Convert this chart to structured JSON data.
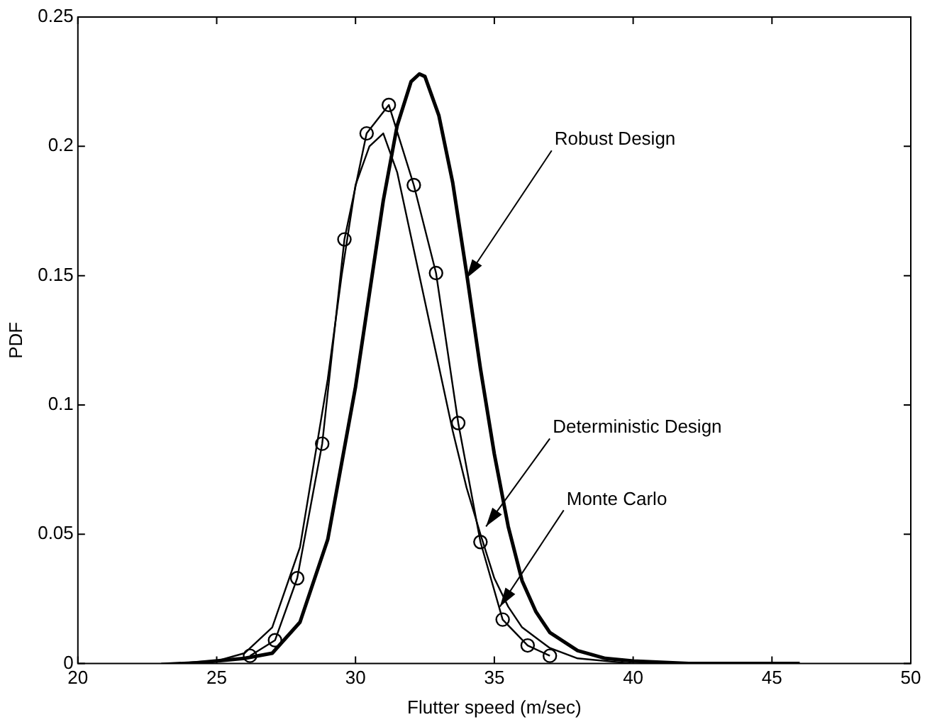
{
  "chart_data": {
    "type": "line",
    "xlabel": "Flutter speed (m/sec)",
    "ylabel": "PDF",
    "xlim": [
      20,
      50
    ],
    "xticks": [
      20,
      25,
      30,
      35,
      40,
      45,
      50
    ],
    "ylim": [
      0,
      0.25
    ],
    "yticks": [
      0,
      0.05,
      0.1,
      0.15,
      0.2,
      0.25
    ],
    "grid": false,
    "legend": false,
    "series": [
      {
        "color": "#000000",
        "marker": "none",
        "x": [
          24,
          26,
          27,
          28,
          29,
          30,
          30.5,
          31,
          31.5,
          32,
          32.3,
          32.5,
          33,
          33.5,
          34,
          34.5,
          35,
          35.5,
          36,
          36.5,
          37,
          38,
          39,
          40,
          42,
          46
        ],
        "values": [
          0,
          0.002,
          0.004,
          0.016,
          0.048,
          0.107,
          0.143,
          0.179,
          0.208,
          0.225,
          0.228,
          0.227,
          0.212,
          0.186,
          0.151,
          0.114,
          0.081,
          0.053,
          0.032,
          0.02,
          0.012,
          0.005,
          0.002,
          0.001,
          0,
          0
        ]
      },
      {
        "color": "#000000",
        "marker": "none",
        "x": [
          23,
          25,
          26,
          27,
          28,
          29,
          29.5,
          30,
          30.5,
          31,
          31.5,
          32,
          32.5,
          33,
          33.5,
          34,
          34.5,
          35,
          35.5,
          36,
          37,
          38,
          40,
          45
        ],
        "values": [
          0,
          0.001,
          0.004,
          0.014,
          0.045,
          0.11,
          0.15,
          0.185,
          0.2,
          0.205,
          0.19,
          0.165,
          0.14,
          0.115,
          0.09,
          0.068,
          0.05,
          0.033,
          0.022,
          0.014,
          0.006,
          0.002,
          0,
          0
        ]
      },
      {
        "color": "#000000",
        "marker": "circle",
        "x": [
          26.2,
          27.1,
          27.9,
          28.8,
          29.6,
          30.4,
          31.2,
          32.1,
          32.9,
          33.7,
          34.5,
          35.3,
          36.2,
          37.0
        ],
        "values": [
          0.003,
          0.009,
          0.033,
          0.085,
          0.164,
          0.205,
          0.216,
          0.185,
          0.151,
          0.093,
          0.047,
          0.017,
          0.007,
          0.003
        ]
      }
    ],
    "annotations": [
      {
        "text": "Robust Design",
        "x": 34.0,
        "y": 0.149
      },
      {
        "text": "Deterministic Design",
        "x": 34.7,
        "y": 0.053
      },
      {
        "text": "Monte Carlo",
        "x": 35.2,
        "y": 0.022
      }
    ]
  }
}
